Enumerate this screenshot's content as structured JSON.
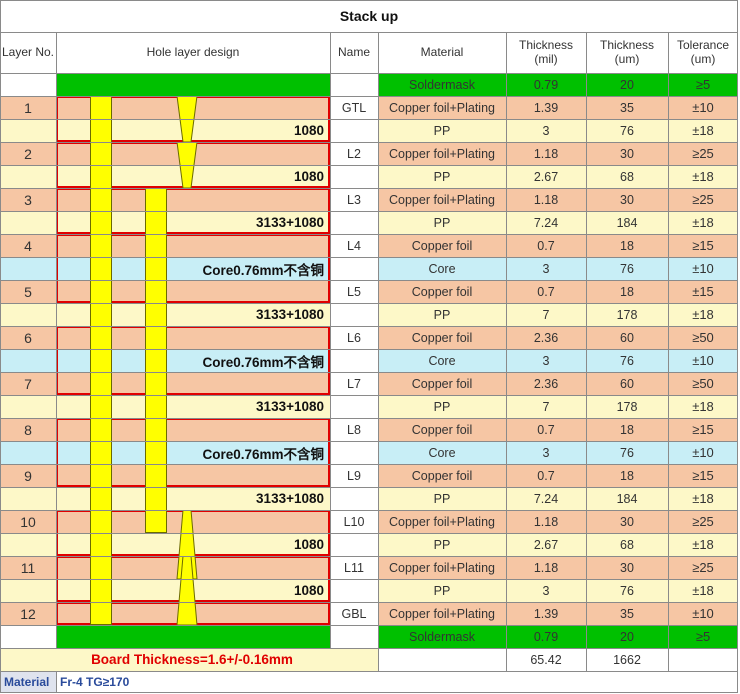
{
  "title": "Stack up",
  "headers": {
    "layer_no": "Layer No.",
    "design": "Hole layer design",
    "name": "Name",
    "material": "Material",
    "thickness_mil": "Thickness\n(mil)",
    "thickness_um": "Thickness\n(um)",
    "tolerance": "Tolerance\n(um)"
  },
  "rows": [
    {
      "layer": "",
      "design": "",
      "name": "",
      "material": "Soldermask",
      "mil": "0.79",
      "um": "20",
      "tol": "≥5"
    },
    {
      "layer": "1",
      "design": "",
      "name": "GTL",
      "material": "Copper foil+Plating",
      "mil": "1.39",
      "um": "35",
      "tol": "±10"
    },
    {
      "layer": "",
      "design": "1080",
      "name": "",
      "material": "PP",
      "mil": "3",
      "um": "76",
      "tol": "±18"
    },
    {
      "layer": "2",
      "design": "",
      "name": "L2",
      "material": "Copper foil+Plating",
      "mil": "1.18",
      "um": "30",
      "tol": "≥25"
    },
    {
      "layer": "",
      "design": "1080",
      "name": "",
      "material": "PP",
      "mil": "2.67",
      "um": "68",
      "tol": "±18"
    },
    {
      "layer": "3",
      "design": "",
      "name": "L3",
      "material": "Copper foil+Plating",
      "mil": "1.18",
      "um": "30",
      "tol": "≥25"
    },
    {
      "layer": "",
      "design": "3133+1080",
      "name": "",
      "material": "PP",
      "mil": "7.24",
      "um": "184",
      "tol": "±18"
    },
    {
      "layer": "4",
      "design": "",
      "name": "L4",
      "material": "Copper foil",
      "mil": "0.7",
      "um": "18",
      "tol": "≥15"
    },
    {
      "layer": "",
      "design": "Core0.76mm不含铜",
      "name": "",
      "material": "Core",
      "mil": "3",
      "um": "76",
      "tol": "±10"
    },
    {
      "layer": "5",
      "design": "",
      "name": "L5",
      "material": "Copper foil",
      "mil": "0.7",
      "um": "18",
      "tol": "±15"
    },
    {
      "layer": "",
      "design": "3133+1080",
      "name": "",
      "material": "PP",
      "mil": "7",
      "um": "178",
      "tol": "±18"
    },
    {
      "layer": "6",
      "design": "",
      "name": "L6",
      "material": "Copper foil",
      "mil": "2.36",
      "um": "60",
      "tol": "≥50"
    },
    {
      "layer": "",
      "design": "Core0.76mm不含铜",
      "name": "",
      "material": "Core",
      "mil": "3",
      "um": "76",
      "tol": "±10"
    },
    {
      "layer": "7",
      "design": "",
      "name": "L7",
      "material": "Copper foil",
      "mil": "2.36",
      "um": "60",
      "tol": "≥50"
    },
    {
      "layer": "",
      "design": "3133+1080",
      "name": "",
      "material": "PP",
      "mil": "7",
      "um": "178",
      "tol": "±18"
    },
    {
      "layer": "8",
      "design": "",
      "name": "L8",
      "material": "Copper foil",
      "mil": "0.7",
      "um": "18",
      "tol": "≥15"
    },
    {
      "layer": "",
      "design": "Core0.76mm不含铜",
      "name": "",
      "material": "Core",
      "mil": "3",
      "um": "76",
      "tol": "±10"
    },
    {
      "layer": "9",
      "design": "",
      "name": "L9",
      "material": "Copper foil",
      "mil": "0.7",
      "um": "18",
      "tol": "≥15"
    },
    {
      "layer": "",
      "design": "3133+1080",
      "name": "",
      "material": "PP",
      "mil": "7.24",
      "um": "184",
      "tol": "±18"
    },
    {
      "layer": "10",
      "design": "",
      "name": "L10",
      "material": "Copper foil+Plating",
      "mil": "1.18",
      "um": "30",
      "tol": "≥25"
    },
    {
      "layer": "",
      "design": "1080",
      "name": "",
      "material": "PP",
      "mil": "2.67",
      "um": "68",
      "tol": "±18"
    },
    {
      "layer": "11",
      "design": "",
      "name": "L11",
      "material": "Copper foil+Plating",
      "mil": "1.18",
      "um": "30",
      "tol": "≥25"
    },
    {
      "layer": "",
      "design": "1080",
      "name": "",
      "material": "PP",
      "mil": "3",
      "um": "76",
      "tol": "±18"
    },
    {
      "layer": "12",
      "design": "",
      "name": "GBL",
      "material": "Copper foil+Plating",
      "mil": "1.39",
      "um": "35",
      "tol": "±10"
    },
    {
      "layer": "",
      "design": "",
      "name": "",
      "material": "Soldermask",
      "mil": "0.79",
      "um": "20",
      "tol": "≥5"
    }
  ],
  "totals": {
    "board_thickness": "Board Thickness=1.6+/-0.16mm",
    "mil": "65.42",
    "um": "1662"
  },
  "footer": {
    "material_label": "Material",
    "material_value": "Fr-4  TG≥170"
  },
  "colors": {
    "soldermask": "#00c000",
    "copper": "#f6c6a4",
    "pp": "#fdf8c8",
    "core": "#c8eef6",
    "via": "#ffff00",
    "outline": "#e00000"
  }
}
